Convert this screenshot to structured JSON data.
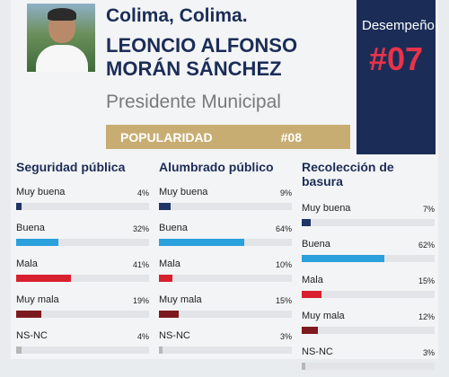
{
  "header": {
    "city": "Colima, Colima.",
    "name": "LEONCIO ALFONSO MORÁN SÁNCHEZ",
    "role": "Presidente Municipal"
  },
  "popularity": {
    "label": "POPULARIDAD",
    "rank": "#08"
  },
  "performance": {
    "label": "Desempeño",
    "rank": "#07"
  },
  "colors": {
    "navy": "#1b2d57",
    "gold": "#c8ad72",
    "red_accent": "#e8334a",
    "muy_buena": "#1f3566",
    "buena": "#2aa0dc",
    "mala": "#d8202e",
    "muy_mala": "#7d1a1e",
    "ns_nc": "#b7b7b7"
  },
  "categories": [
    {
      "title": "Seguridad pública",
      "rows": [
        {
          "label": "Muy buena",
          "pct": "4%",
          "value": 4,
          "color": "#1f3566"
        },
        {
          "label": "Buena",
          "pct": "32%",
          "value": 32,
          "color": "#2aa0dc"
        },
        {
          "label": "Mala",
          "pct": "41%",
          "value": 41,
          "color": "#d8202e"
        },
        {
          "label": "Muy mala",
          "pct": "19%",
          "value": 19,
          "color": "#7d1a1e"
        },
        {
          "label": "NS-NC",
          "pct": "4%",
          "value": 4,
          "color": "#b7b7b7"
        }
      ]
    },
    {
      "title": "Alumbrado público",
      "rows": [
        {
          "label": "Muy buena",
          "pct": "9%",
          "value": 9,
          "color": "#1f3566"
        },
        {
          "label": "Buena",
          "pct": "64%",
          "value": 64,
          "color": "#2aa0dc"
        },
        {
          "label": "Mala",
          "pct": "10%",
          "value": 10,
          "color": "#d8202e"
        },
        {
          "label": "Muy mala",
          "pct": "15%",
          "value": 15,
          "color": "#7d1a1e"
        },
        {
          "label": "NS-NC",
          "pct": "3%",
          "value": 3,
          "color": "#b7b7b7"
        }
      ]
    },
    {
      "title": "Recolección de basura",
      "rows": [
        {
          "label": "Muy buena",
          "pct": "7%",
          "value": 7,
          "color": "#1f3566"
        },
        {
          "label": "Buena",
          "pct": "62%",
          "value": 62,
          "color": "#2aa0dc"
        },
        {
          "label": "Mala",
          "pct": "15%",
          "value": 15,
          "color": "#d8202e"
        },
        {
          "label": "Muy mala",
          "pct": "12%",
          "value": 12,
          "color": "#7d1a1e"
        },
        {
          "label": "NS-NC",
          "pct": "3%",
          "value": 3,
          "color": "#b7b7b7"
        }
      ]
    }
  ]
}
